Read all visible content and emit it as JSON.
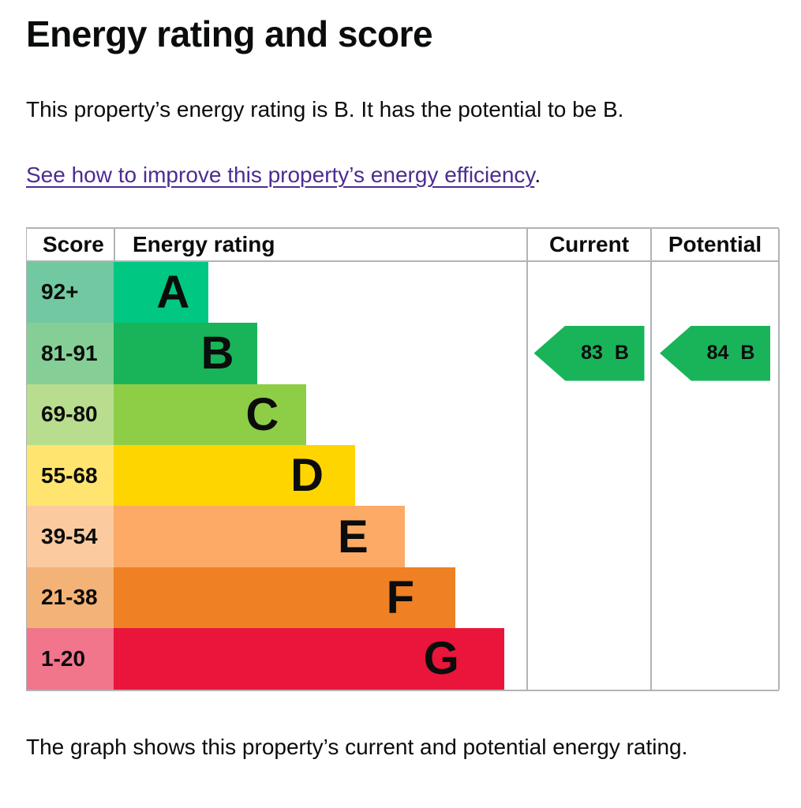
{
  "page": {
    "title": "Energy rating and score",
    "intro": "This property’s energy rating is B. It has the potential to be B.",
    "link_text": "See how to improve this property’s energy efficiency",
    "link_suffix": ".",
    "caption": "The graph shows this property’s current and potential energy rating."
  },
  "colors": {
    "text": "#0b0c0c",
    "link": "#4c2c92",
    "table_border": "#b1b4b6"
  },
  "chart_data": {
    "type": "bar",
    "title": "Energy efficiency rating chart",
    "headers": [
      "Score",
      "Energy rating",
      "Current",
      "Potential"
    ],
    "legend_position": "none",
    "bands": [
      {
        "score": "92+",
        "letter": "A",
        "color": "#00c781",
        "score_bg": "#72c8a1",
        "width_pct": 23.0
      },
      {
        "score": "81-91",
        "letter": "B",
        "color": "#19b459",
        "score_bg": "#85cf96",
        "width_pct": 34.8
      },
      {
        "score": "69-80",
        "letter": "C",
        "color": "#8dce46",
        "score_bg": "#b8dd8e",
        "width_pct": 46.7
      },
      {
        "score": "55-68",
        "letter": "D",
        "color": "#ffd500",
        "score_bg": "#ffe470",
        "width_pct": 58.6
      },
      {
        "score": "39-54",
        "letter": "E",
        "color": "#fcaa65",
        "score_bg": "#fbcb9f",
        "width_pct": 70.5
      },
      {
        "score": "21-38",
        "letter": "F",
        "color": "#ef8023",
        "score_bg": "#f3b377",
        "width_pct": 82.7
      },
      {
        "score": "1-20",
        "letter": "G",
        "color": "#e9153b",
        "score_bg": "#f1758b",
        "width_pct": 94.6
      }
    ],
    "current": {
      "value": "83",
      "band": "B",
      "row_index": 1,
      "color": "#19b459"
    },
    "potential": {
      "value": "84",
      "band": "B",
      "row_index": 1,
      "color": "#19b459"
    }
  }
}
